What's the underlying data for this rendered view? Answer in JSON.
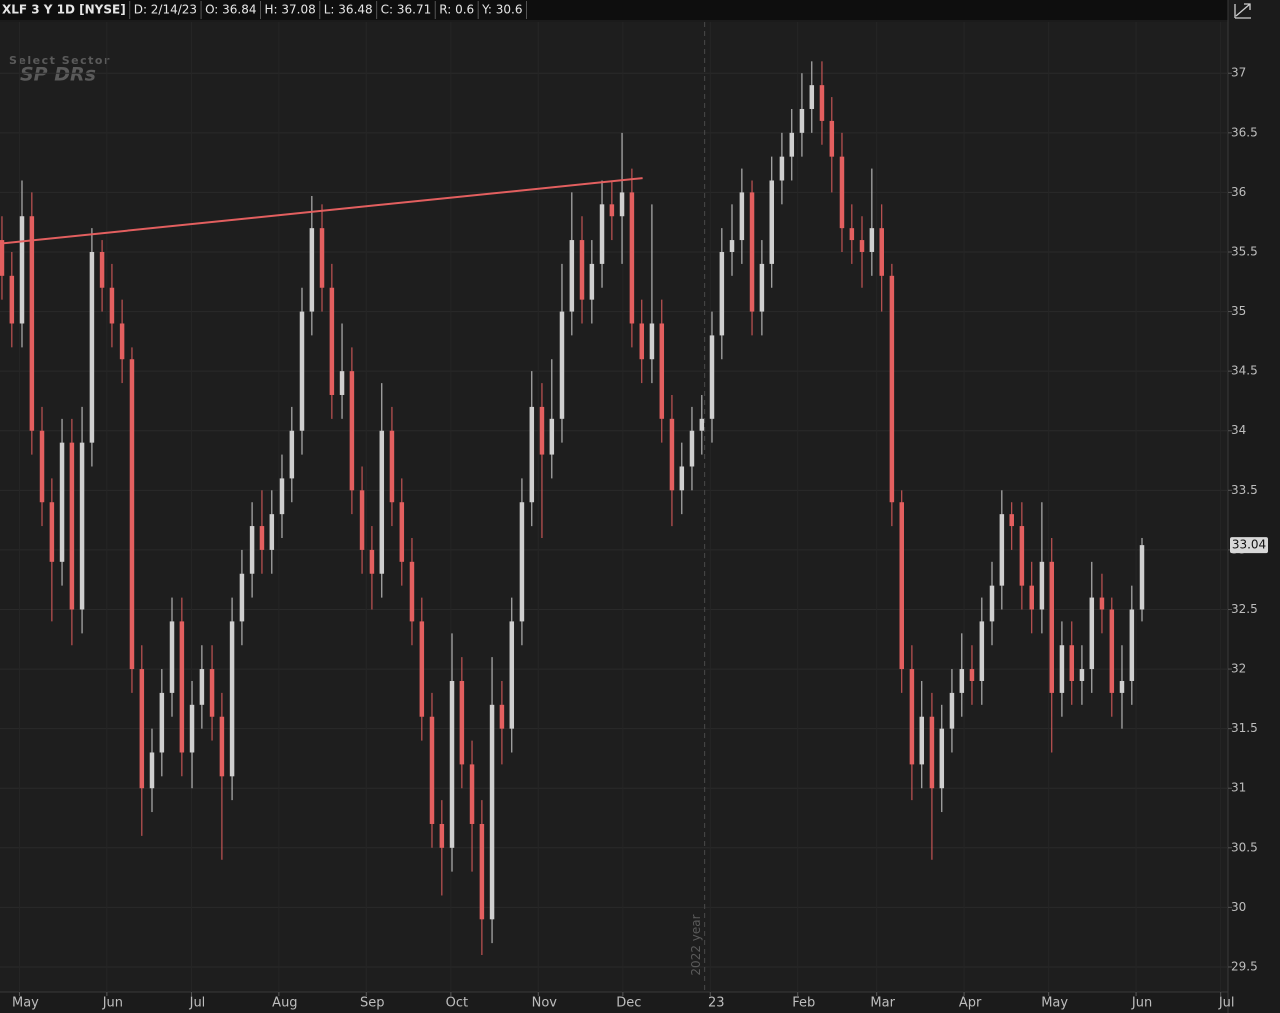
{
  "chart_data": {
    "type": "candlestick",
    "quote": [
      "XLF 3 Y 1D [NYSE]",
      "D: 2/14/23",
      "O: 36.84",
      "H: 37.08",
      "L: 36.48",
      "C: 36.71",
      "R: 0.6",
      "Y: 30.6"
    ],
    "watermark": [
      "Select Sector",
      "SP DRs"
    ],
    "annotation": {
      "text": "2022 year",
      "x": 243
    },
    "up_color": "#cfcfcf",
    "down_color": "#e35f5f",
    "trendline": {
      "x": [
        -7,
        221
      ],
      "y": [
        35.57,
        36.12
      ],
      "color": "#e35f5f"
    },
    "last_value": 33.04,
    "grid": true,
    "xlim": [
      -6.9,
      428.6
    ],
    "ylim": [
      29.29,
      37.43
    ],
    "xticks": [
      {
        "value": 0,
        "label": "May"
      },
      {
        "value": 31,
        "label": "Jun"
      },
      {
        "value": 61,
        "label": "Jul"
      },
      {
        "value": 92,
        "label": "Aug"
      },
      {
        "value": 123,
        "label": "Sep"
      },
      {
        "value": 153,
        "label": "Oct"
      },
      {
        "value": 184,
        "label": "Nov"
      },
      {
        "value": 214,
        "label": "Dec"
      },
      {
        "value": 245,
        "label": "23"
      },
      {
        "value": 276,
        "label": "Feb"
      },
      {
        "value": 304,
        "label": "Mar"
      },
      {
        "value": 335,
        "label": "Apr"
      },
      {
        "value": 365,
        "label": "May"
      },
      {
        "value": 396,
        "label": "Jun"
      },
      {
        "value": 426,
        "label": "Jul"
      }
    ],
    "yticks": [
      29.5,
      30,
      30.5,
      31,
      31.5,
      32,
      32.5,
      33,
      33.5,
      34,
      34.5,
      35,
      35.5,
      36,
      36.5,
      37
    ],
    "x": [
      -6.2,
      -2.7,
      0.9,
      4.4,
      8.0,
      11.5,
      15.1,
      18.6,
      22.2,
      25.7,
      29.3,
      32.8,
      36.4,
      39.9,
      43.4,
      47.0,
      50.5,
      54.1,
      57.6,
      61.2,
      64.7,
      68.3,
      71.8,
      75.4,
      78.9,
      82.5,
      86.0,
      89.5,
      93.1,
      96.6,
      100.2,
      103.7,
      107.3,
      110.8,
      114.4,
      117.9,
      121.5,
      125.0,
      128.5,
      132.1,
      135.6,
      139.2,
      142.7,
      146.3,
      149.8,
      153.4,
      156.9,
      160.5,
      164.0,
      167.6,
      171.1,
      174.6,
      178.2,
      181.7,
      185.3,
      188.8,
      192.4,
      195.9,
      199.5,
      203.0,
      206.6,
      210.1,
      213.7,
      217.2,
      220.7,
      224.3,
      227.8,
      231.4,
      234.9,
      238.5,
      242.0,
      245.6,
      249.1,
      252.7,
      256.2,
      259.8,
      263.3,
      266.8,
      270.4,
      273.9,
      277.5,
      281.0,
      284.6,
      288.1,
      291.7,
      295.2,
      298.8,
      302.3,
      305.8,
      309.4,
      312.9,
      316.5,
      320.0,
      323.6,
      327.1,
      330.7,
      334.2,
      337.8,
      341.3,
      344.9,
      348.4,
      351.9,
      355.5,
      359.0,
      362.6,
      366.1,
      369.7,
      373.2,
      376.8,
      380.3,
      383.9,
      387.4,
      391.0,
      394.5,
      398.1
    ],
    "open": [
      35.6,
      35.3,
      34.9,
      35.8,
      34.0,
      33.4,
      32.9,
      33.9,
      32.5,
      33.9,
      35.5,
      35.2,
      34.9,
      34.6,
      32.0,
      31.0,
      31.3,
      31.8,
      32.4,
      31.3,
      31.7,
      32.0,
      31.6,
      31.1,
      32.4,
      32.8,
      33.2,
      33.0,
      33.3,
      33.6,
      34.0,
      35.0,
      35.7,
      35.2,
      34.3,
      34.5,
      33.5,
      33.0,
      32.8,
      34.0,
      33.4,
      32.9,
      32.4,
      31.6,
      30.7,
      30.5,
      31.9,
      31.2,
      30.7,
      29.9,
      31.7,
      31.5,
      32.4,
      33.4,
      34.2,
      33.8,
      34.1,
      35.0,
      35.6,
      35.1,
      35.4,
      35.9,
      35.8,
      36.0,
      34.9,
      34.6,
      34.9,
      34.1,
      33.5,
      33.7,
      34.0,
      34.1,
      34.8,
      35.5,
      35.6,
      36.0,
      35.0,
      35.4,
      36.1,
      36.3,
      36.5,
      36.7,
      36.9,
      36.6,
      36.3,
      35.7,
      35.6,
      35.5,
      35.7,
      35.3,
      33.4,
      32.0,
      31.2,
      31.6,
      31.0,
      31.5,
      31.8,
      32.0,
      31.9,
      32.4,
      32.7,
      33.3,
      33.2,
      32.7,
      32.5,
      32.9,
      31.8,
      32.2,
      31.9,
      32.0,
      32.6,
      32.5,
      31.8,
      31.9,
      32.5
    ],
    "high": [
      35.8,
      35.5,
      36.1,
      36.0,
      34.2,
      33.6,
      34.1,
      34.1,
      34.2,
      35.7,
      35.6,
      35.4,
      35.1,
      34.7,
      32.2,
      31.5,
      32.0,
      32.6,
      32.6,
      31.9,
      32.2,
      32.2,
      31.8,
      32.6,
      33.0,
      33.4,
      33.5,
      33.5,
      33.8,
      34.2,
      35.2,
      35.97,
      35.9,
      35.4,
      34.9,
      34.7,
      33.7,
      33.2,
      34.4,
      34.2,
      33.6,
      33.1,
      32.6,
      31.8,
      30.9,
      32.3,
      32.1,
      31.4,
      30.9,
      32.1,
      31.9,
      32.6,
      33.6,
      34.5,
      34.4,
      34.6,
      35.4,
      36.0,
      35.8,
      35.6,
      36.1,
      36.1,
      36.5,
      36.2,
      35.1,
      35.9,
      35.1,
      34.3,
      33.9,
      34.2,
      34.3,
      35.0,
      35.7,
      35.9,
      36.2,
      36.1,
      35.6,
      36.3,
      36.5,
      36.7,
      37.0,
      37.1,
      37.1,
      36.8,
      36.5,
      35.9,
      35.8,
      36.2,
      35.9,
      35.4,
      33.5,
      32.2,
      31.9,
      31.8,
      31.7,
      32.0,
      32.3,
      32.2,
      32.6,
      32.9,
      33.5,
      33.4,
      33.4,
      32.9,
      33.4,
      33.1,
      32.4,
      32.4,
      32.2,
      32.9,
      32.8,
      32.6,
      32.2,
      32.7,
      33.1
    ],
    "low": [
      35.1,
      34.7,
      34.7,
      33.8,
      33.2,
      32.4,
      32.7,
      32.2,
      32.3,
      33.7,
      35.0,
      34.7,
      34.4,
      31.8,
      30.6,
      30.8,
      31.1,
      31.6,
      31.1,
      31.0,
      31.5,
      31.4,
      30.4,
      30.9,
      32.2,
      32.6,
      32.8,
      32.8,
      33.1,
      33.4,
      33.8,
      34.8,
      35.0,
      34.1,
      34.1,
      33.3,
      32.8,
      32.5,
      32.6,
      33.2,
      32.7,
      32.2,
      31.4,
      30.5,
      30.1,
      30.3,
      31.0,
      30.3,
      29.6,
      29.7,
      31.2,
      31.3,
      32.2,
      33.2,
      33.1,
      33.6,
      33.9,
      34.8,
      34.9,
      34.9,
      35.2,
      35.6,
      35.4,
      34.7,
      34.4,
      34.4,
      33.9,
      33.2,
      33.3,
      33.5,
      33.8,
      33.9,
      34.6,
      35.3,
      35.4,
      34.8,
      34.8,
      35.2,
      35.9,
      36.1,
      36.3,
      36.5,
      36.4,
      36.0,
      35.5,
      35.4,
      35.2,
      35.3,
      35.0,
      33.2,
      31.8,
      30.9,
      31.0,
      30.4,
      30.8,
      31.3,
      31.6,
      31.7,
      31.7,
      32.2,
      32.5,
      33.0,
      32.5,
      32.3,
      32.3,
      31.3,
      31.6,
      31.7,
      31.7,
      31.8,
      32.3,
      31.6,
      31.5,
      31.7,
      32.4
    ],
    "close": [
      35.3,
      34.9,
      35.8,
      34.0,
      33.4,
      32.9,
      33.9,
      32.5,
      33.9,
      35.5,
      35.2,
      34.9,
      34.6,
      32.0,
      31.0,
      31.3,
      31.8,
      32.4,
      31.3,
      31.7,
      32.0,
      31.6,
      31.1,
      32.4,
      32.8,
      33.2,
      33.0,
      33.3,
      33.6,
      34.0,
      35.0,
      35.7,
      35.2,
      34.3,
      34.5,
      33.5,
      33.0,
      32.8,
      34.0,
      33.4,
      32.9,
      32.4,
      31.6,
      30.7,
      30.5,
      31.9,
      31.2,
      30.7,
      29.9,
      31.7,
      31.5,
      32.4,
      33.4,
      34.2,
      33.8,
      34.1,
      35.0,
      35.6,
      35.1,
      35.4,
      35.9,
      35.8,
      36.0,
      34.9,
      34.6,
      34.9,
      34.1,
      33.5,
      33.7,
      34.0,
      34.1,
      34.8,
      35.5,
      35.6,
      36.0,
      35.0,
      35.4,
      36.1,
      36.3,
      36.5,
      36.7,
      36.9,
      36.6,
      36.3,
      35.7,
      35.6,
      35.5,
      35.7,
      35.3,
      33.4,
      32.0,
      31.2,
      31.6,
      31.0,
      31.5,
      31.8,
      32.0,
      31.9,
      32.4,
      32.7,
      33.3,
      33.2,
      32.7,
      32.5,
      32.9,
      31.8,
      32.2,
      31.9,
      32.0,
      32.6,
      32.5,
      31.8,
      31.9,
      32.5,
      33.04
    ]
  }
}
